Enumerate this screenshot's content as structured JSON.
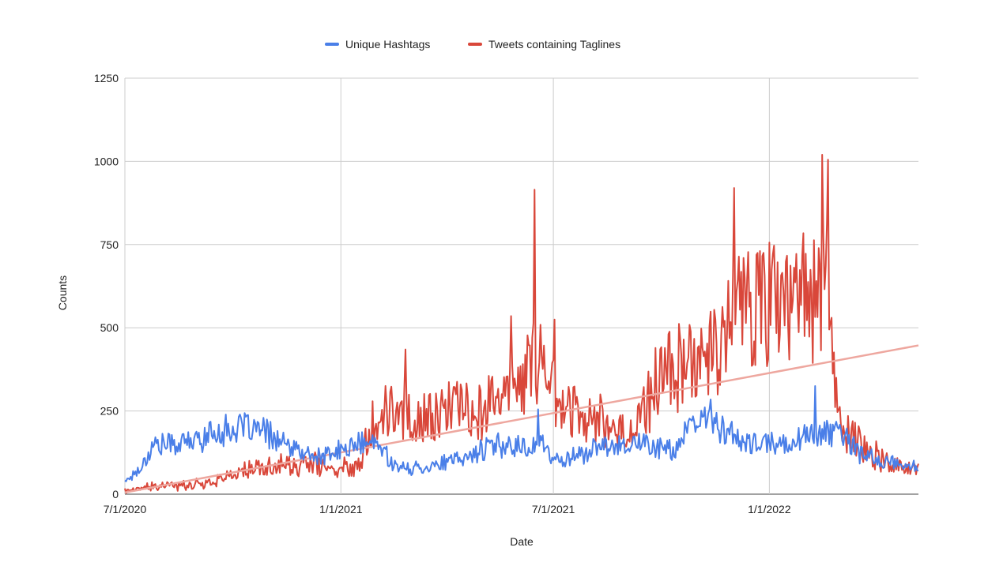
{
  "chart_data": {
    "type": "line",
    "title": "",
    "xlabel": "Date",
    "ylabel": "Counts",
    "ylim": [
      0,
      1250
    ],
    "yticks": [
      0,
      250,
      500,
      750,
      1000,
      1250
    ],
    "xlim": [
      "2020-07-01",
      "2022-05-08"
    ],
    "xticks": [
      "2020-07-01",
      "2021-01-01",
      "2021-07-01",
      "2022-01-01"
    ],
    "xtick_labels": [
      "7/1/2020",
      "1/1/2021",
      "7/1/2021",
      "1/1/2022"
    ],
    "grid": true,
    "legend_position": "top-center",
    "series": [
      {
        "name": "Unique Hashtags",
        "color": "#4a7fe8",
        "x": [
          "2020-07-01",
          "2020-07-15",
          "2020-07-25",
          "2020-08-10",
          "2020-08-30",
          "2020-09-15",
          "2020-10-01",
          "2020-10-15",
          "2020-11-01",
          "2020-11-15",
          "2020-12-01",
          "2020-12-15",
          "2021-01-01",
          "2021-01-15",
          "2021-02-01",
          "2021-02-20",
          "2021-03-10",
          "2021-04-01",
          "2021-04-15",
          "2021-05-05",
          "2021-05-20",
          "2021-06-10",
          "2021-06-20",
          "2021-07-01",
          "2021-07-20",
          "2021-08-10",
          "2021-09-01",
          "2021-09-20",
          "2021-10-10",
          "2021-10-25",
          "2021-11-10",
          "2021-11-25",
          "2021-12-10",
          "2021-12-25",
          "2022-01-10",
          "2022-01-25",
          "2022-02-10",
          "2022-03-01",
          "2022-03-20",
          "2022-04-10",
          "2022-05-08"
        ],
        "values": [
          40,
          80,
          150,
          150,
          160,
          185,
          195,
          200,
          180,
          145,
          120,
          110,
          130,
          150,
          150,
          75,
          80,
          95,
          105,
          140,
          150,
          140,
          160,
          100,
          115,
          140,
          155,
          150,
          130,
          190,
          240,
          190,
          150,
          150,
          150,
          165,
          185,
          185,
          120,
          95,
          80
        ],
        "spikes": [
          {
            "x": "2021-06-18",
            "y": 255
          },
          {
            "x": "2022-02-09",
            "y": 325
          }
        ]
      },
      {
        "name": "Tweets containing Taglines",
        "color": "#d9473a",
        "x": [
          "2020-07-01",
          "2020-07-20",
          "2020-08-10",
          "2020-09-01",
          "2020-09-20",
          "2020-10-10",
          "2020-10-25",
          "2020-11-10",
          "2020-11-25",
          "2020-12-10",
          "2020-12-25",
          "2021-01-15",
          "2021-01-30",
          "2021-02-10",
          "2021-02-25",
          "2021-03-10",
          "2021-03-25",
          "2021-04-10",
          "2021-04-25",
          "2021-05-10",
          "2021-05-25",
          "2021-06-10",
          "2021-06-17",
          "2021-06-25",
          "2021-07-10",
          "2021-07-25",
          "2021-08-10",
          "2021-08-25",
          "2021-09-10",
          "2021-09-25",
          "2021-10-10",
          "2021-10-25",
          "2021-11-10",
          "2021-11-20",
          "2021-12-01",
          "2021-12-15",
          "2022-01-01",
          "2022-01-20",
          "2022-02-01",
          "2022-02-20",
          "2022-03-01",
          "2022-03-10",
          "2022-03-25",
          "2022-04-10",
          "2022-04-25",
          "2022-05-08"
        ],
        "values": [
          10,
          20,
          25,
          30,
          45,
          70,
          75,
          90,
          80,
          95,
          70,
          90,
          240,
          250,
          240,
          220,
          240,
          260,
          250,
          280,
          300,
          360,
          420,
          360,
          260,
          240,
          230,
          180,
          200,
          330,
          380,
          400,
          440,
          470,
          560,
          580,
          580,
          560,
          600,
          620,
          200,
          180,
          140,
          100,
          80,
          70
        ],
        "spikes": [
          {
            "x": "2021-06-15",
            "y": 915
          },
          {
            "x": "2021-12-02",
            "y": 920
          },
          {
            "x": "2022-02-15",
            "y": 1020
          },
          {
            "x": "2022-02-20",
            "y": 1005
          },
          {
            "x": "2021-02-25",
            "y": 435
          },
          {
            "x": "2021-07-02",
            "y": 525
          },
          {
            "x": "2021-05-26",
            "y": 535
          }
        ]
      },
      {
        "name": "",
        "kind": "trendline",
        "color": "#eea79f",
        "x": [
          "2020-07-01",
          "2022-05-08"
        ],
        "values": [
          5,
          447
        ]
      }
    ]
  }
}
